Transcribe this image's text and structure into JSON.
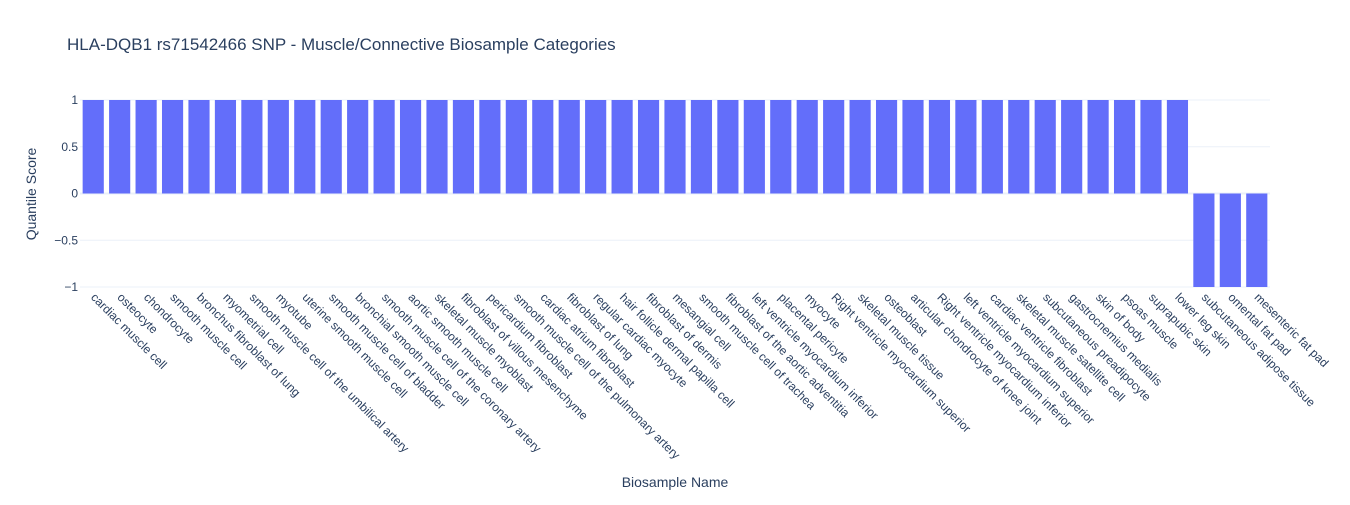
{
  "chart_data": {
    "type": "bar",
    "title": "HLA-DQB1 rs71542466 SNP - Muscle/Connective Biosample Categories",
    "xlabel": "Biosample Name",
    "ylabel": "Quantile Score",
    "ylim": [
      -1,
      1
    ],
    "yticks": [
      "1",
      "0.5",
      "0",
      "−0.5",
      "−1"
    ],
    "ytick_values": [
      1,
      0.5,
      0,
      -0.5,
      -1
    ],
    "grid": true,
    "bar_color": "#636efa",
    "categories": [
      "cardiac muscle cell",
      "osteocyte",
      "chondrocyte",
      "smooth muscle cell",
      "bronchus fibroblast of lung",
      "myometrial cell",
      "smooth muscle cell of the umbilical artery",
      "myotube",
      "uterine smooth muscle cell",
      "smooth muscle cell of bladder",
      "bronchial smooth muscle cell",
      "smooth muscle cell of the coronary artery",
      "aortic smooth muscle cell",
      "skeletal muscle myoblast",
      "fibroblast of villous mesenchyme",
      "pericardium fibroblast",
      "smooth muscle cell of the pulmonary artery",
      "cardiac atrium fibroblast",
      "fibroblast of lung",
      "regular cardiac myocyte",
      "hair follicle dermal papilla cell",
      "fibroblast of dermis",
      "mesangial cell",
      "smooth muscle cell of trachea",
      "fibroblast of the aortic adventitia",
      "left ventricle myocardium inferior",
      "placental pericyte",
      "myocyte",
      "Right ventricle myocardium superior",
      "skeletal muscle tissue",
      "osteoblast",
      "articular chondrocyte of knee joint",
      "Right ventricle myocardium inferior",
      "left ventricle myocardium superior",
      "cardiac ventricle fibroblast",
      "skeletal muscle satellite cell",
      "subcutaneous preadipocyte",
      "gastrocnemius medialis",
      "skin of body",
      "psoas muscle",
      "suprapubic skin",
      "lower leg skin",
      "subcutaneous adipose tissue",
      "omental fat pad",
      "mesenteric fat pad"
    ],
    "values": [
      1,
      1,
      1,
      1,
      1,
      1,
      1,
      1,
      1,
      1,
      1,
      1,
      1,
      1,
      1,
      1,
      1,
      1,
      1,
      1,
      1,
      1,
      1,
      1,
      1,
      1,
      1,
      1,
      1,
      1,
      1,
      1,
      1,
      1,
      1,
      1,
      1,
      1,
      1,
      1,
      1,
      1,
      -1,
      -1,
      -1
    ]
  }
}
